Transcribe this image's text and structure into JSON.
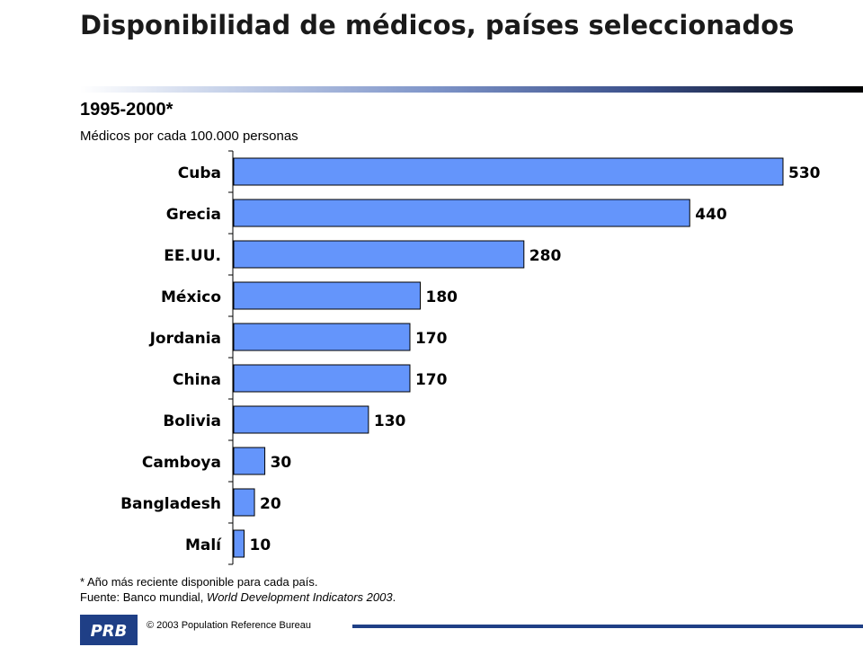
{
  "header": {
    "title": "Disponibilidad de médicos, países seleccionados"
  },
  "chart_data": {
    "type": "bar",
    "orientation": "horizontal",
    "title": "1995-2000*",
    "subtitle": "Médicos por cada 100.000 personas",
    "categories": [
      "Cuba",
      "Grecia",
      "EE.UU.",
      "México",
      "Jordania",
      "China",
      "Bolivia",
      "Camboya",
      "Bangladesh",
      "Malí"
    ],
    "values": [
      530,
      440,
      280,
      180,
      170,
      170,
      130,
      30,
      20,
      10
    ],
    "xlim": [
      0,
      530
    ],
    "grid": false,
    "legend": "none",
    "colors": {
      "bar": "#6495fb",
      "bar_border": "#000000"
    }
  },
  "notes": {
    "footnote": "* Año más reciente disponible para cada país.",
    "source_prefix": "Fuente: Banco mundial, ",
    "source_title": "World Development Indicators 2003",
    "source_suffix": "."
  },
  "footer": {
    "logo_text": "PRB",
    "copyright": "© 2003 Population Reference Bureau"
  },
  "colors": {
    "brand": "#1f3f86"
  }
}
